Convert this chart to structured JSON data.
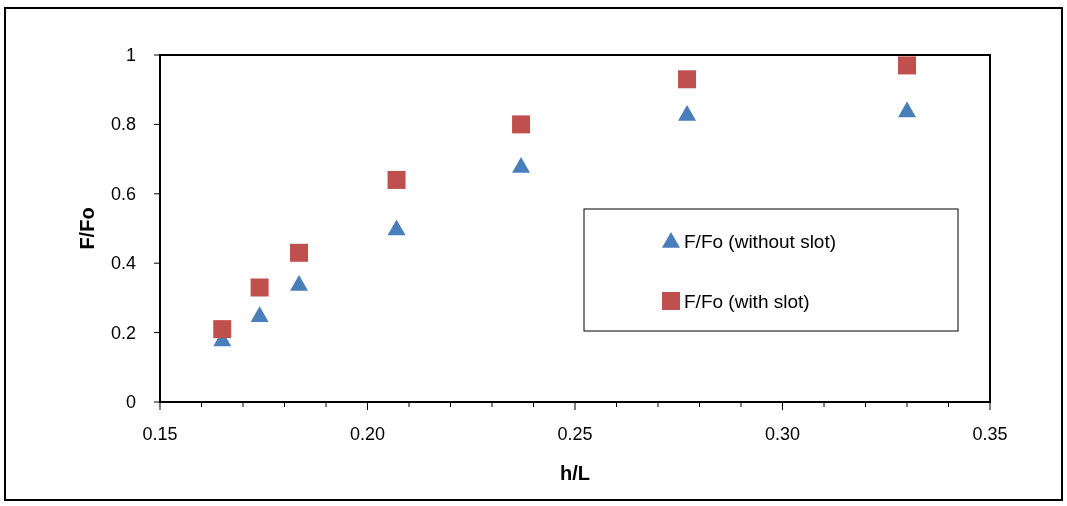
{
  "chart_data": {
    "type": "scatter",
    "xlabel": "h/L",
    "ylabel": "F/Fo",
    "xlim": [
      0.15,
      0.35
    ],
    "xticks": [
      "0.15",
      {
        "value": 0.16,
        "label": null
      },
      {
        "value": 0.17,
        "label": null
      },
      {
        "value": 0.18,
        "label": null
      },
      {
        "value": 0.19,
        "label": null
      },
      {
        "value": 0.2,
        "label": "0.20"
      },
      {
        "value": 0.21,
        "label": null
      },
      {
        "value": 0.22,
        "label": null
      },
      {
        "value": 0.23,
        "label": null
      },
      {
        "value": 0.24,
        "label": null
      },
      {
        "value": 0.25,
        "label": "0.25"
      },
      {
        "value": 0.26,
        "label": null
      },
      {
        "value": 0.27,
        "label": null
      },
      {
        "value": 0.28,
        "label": null
      },
      {
        "value": 0.29,
        "label": null
      },
      {
        "value": 0.3,
        "label": "0.30"
      },
      {
        "value": 0.31,
        "label": null
      },
      {
        "value": 0.32,
        "label": null
      },
      {
        "value": 0.33,
        "label": null
      },
      {
        "value": 0.34,
        "label": null
      },
      {
        "value": 0.35,
        "label": "0.35"
      }
    ],
    "ylim": [
      0,
      1
    ],
    "yticks": [
      0,
      0.2,
      0.4,
      0.6,
      0.8,
      1
    ],
    "legend": "right",
    "grid": false,
    "series": [
      {
        "name": "F/Fo (without slot)",
        "color": "#4a7ebb",
        "marker": "triangle",
        "x": [
          0.165,
          0.174,
          0.1835,
          0.207,
          0.237,
          0.277,
          0.33
        ],
        "values": [
          0.18,
          0.25,
          0.34,
          0.5,
          0.68,
          0.83,
          0.84
        ]
      },
      {
        "name": "F/Fo (with slot)",
        "color": "#c0504d",
        "marker": "square",
        "x": [
          0.165,
          0.174,
          0.1835,
          0.207,
          0.237,
          0.277,
          0.33
        ],
        "values": [
          0.21,
          0.33,
          0.43,
          0.64,
          0.8,
          0.93,
          0.97
        ]
      }
    ]
  }
}
